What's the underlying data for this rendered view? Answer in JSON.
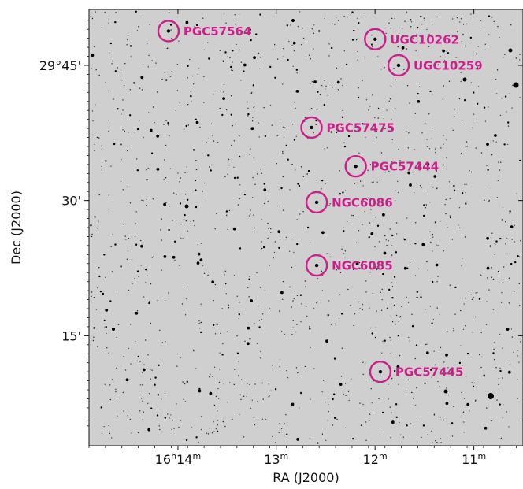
{
  "chart_data": {
    "type": "scatter",
    "xlabel": "RA (J2000)",
    "ylabel": "Dec (J2000)",
    "xlim_ra_min": [
      16.2555,
      16.1768
    ],
    "ylim_dec_arcmin_above_29deg": [
      2.8,
      51.2
    ],
    "x_ticks": [
      {
        "ra_min": 16.2333,
        "main": "16",
        "h": "h",
        "m": "14",
        "mm": "m"
      },
      {
        "ra_min": 16.2167,
        "main": "13",
        "h": "",
        "m": "",
        "mm": "m"
      },
      {
        "ra_min": 16.2,
        "main": "12",
        "h": "",
        "m": "",
        "mm": "m"
      },
      {
        "ra_min": 16.1833,
        "main": "11",
        "h": "",
        "m": "",
        "mm": "m"
      }
    ],
    "y_ticks": [
      {
        "dec_arcmin": 45,
        "label": "29°45'"
      },
      {
        "dec_arcmin": 30,
        "label": "30'"
      },
      {
        "dec_arcmin": 15,
        "label": "15'"
      }
    ],
    "objects": [
      {
        "name": "PGC57564",
        "ra_hours": 16.2349,
        "dec_arcmin": 48.8
      },
      {
        "name": "UGC10262",
        "ra_hours": 16.19998,
        "dec_arcmin": 47.9
      },
      {
        "name": "UGC10259",
        "ra_hours": 16.19603,
        "dec_arcmin": 45.0
      },
      {
        "name": "PGC57475",
        "ra_hours": 16.21073,
        "dec_arcmin": 38.1
      },
      {
        "name": "PGC57444",
        "ra_hours": 16.20326,
        "dec_arcmin": 33.8
      },
      {
        "name": "NGC6086",
        "ra_hours": 16.20986,
        "dec_arcmin": 29.8
      },
      {
        "name": "NGC6085",
        "ra_hours": 16.20986,
        "dec_arcmin": 22.8
      },
      {
        "name": "PGC57445",
        "ra_hours": 16.1991,
        "dec_arcmin": 11.0
      }
    ],
    "marker_color": "#cc1f8a",
    "background_color": "#cfcfcf",
    "grid": false
  }
}
